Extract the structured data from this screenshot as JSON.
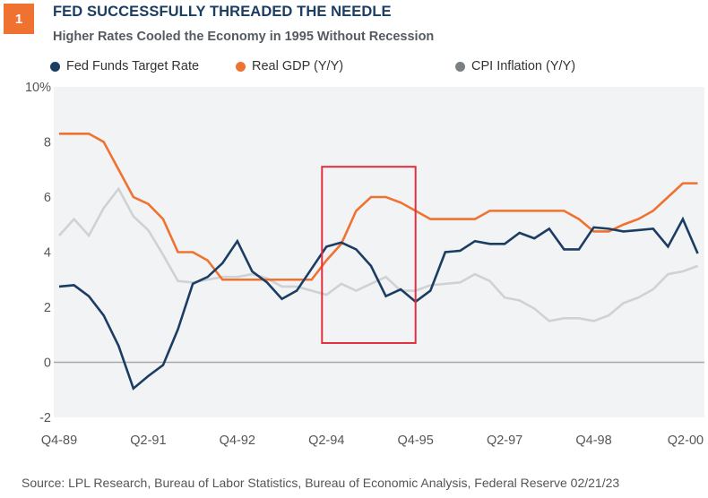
{
  "header": {
    "badge": "1",
    "title": "FED SUCCESSFULLY THREADED THE NEEDLE",
    "subtitle": "Higher Rates Cooled the Economy in 1995 Without Recession"
  },
  "footer": {
    "source": "Source: LPL Research, Bureau of Labor Statistics, Bureau of Economic Analysis, Federal Reserve  02/21/23"
  },
  "colors": {
    "fed": "#1b3d62",
    "gdp": "#f07230",
    "cpi": "#cfd2d4",
    "cpi_legend": "#7a7f84",
    "plot_bg": "#f2f3f5",
    "highlight": "#e03040",
    "zero_line": "#a7a9ab"
  },
  "chart_data": {
    "type": "line",
    "title": "FED SUCCESSFULLY THREADED THE NEEDLE",
    "subtitle": "Higher Rates Cooled the Economy in 1995 Without Recession",
    "xlabel": "",
    "ylabel": "",
    "ylim": [
      -2,
      10
    ],
    "y_ticks": [
      -2,
      0,
      2,
      4,
      6,
      8,
      10
    ],
    "y_tick_labels": [
      "-2",
      "0",
      "2",
      "4",
      "6",
      "8",
      "10%"
    ],
    "x_tick_labels": [
      "Q4-89",
      "Q2-91",
      "Q4-92",
      "Q2-94",
      "Q4-95",
      "Q2-97",
      "Q4-98",
      "Q2-00"
    ],
    "x_tick_index": [
      0,
      6,
      12,
      18,
      24,
      30,
      36,
      42
    ],
    "legend_position": "top",
    "grid": false,
    "highlight_box": {
      "x_start_index": 17.7,
      "x_end_index": 24.0,
      "y_low": 0.7,
      "y_high": 7.1
    },
    "series": [
      {
        "name": "Fed Funds Target Rate",
        "color_key": "fed",
        "values": [
          2.75,
          2.8,
          2.4,
          1.7,
          0.6,
          -0.95,
          -0.5,
          -0.1,
          1.2,
          2.85,
          3.1,
          3.6,
          4.4,
          3.3,
          2.9,
          2.3,
          2.6,
          3.4,
          4.2,
          4.35,
          4.1,
          3.5,
          2.4,
          2.65,
          2.2,
          2.6,
          4.0,
          4.05,
          4.4,
          4.3,
          4.3,
          4.7,
          4.5,
          4.85,
          4.1,
          4.1,
          4.9,
          4.85,
          4.75,
          4.8,
          4.85,
          4.2,
          5.2,
          3.95
        ]
      },
      {
        "name": "Real GDP (Y/Y)",
        "color_key": "gdp",
        "values": [
          8.3,
          8.3,
          8.3,
          8.0,
          7.0,
          6.0,
          5.75,
          5.2,
          4.0,
          4.0,
          3.7,
          3.0,
          3.0,
          3.0,
          3.0,
          3.0,
          3.0,
          3.0,
          3.7,
          4.3,
          5.5,
          6.0,
          6.0,
          5.8,
          5.5,
          5.2,
          5.2,
          5.2,
          5.2,
          5.5,
          5.5,
          5.5,
          5.5,
          5.5,
          5.5,
          5.2,
          4.75,
          4.75,
          5.0,
          5.2,
          5.5,
          6.0,
          6.5,
          6.5
        ]
      },
      {
        "name": "CPI Inflation (Y/Y)",
        "color_key": "cpi",
        "values": [
          4.6,
          5.2,
          4.6,
          5.6,
          6.3,
          5.3,
          4.8,
          3.9,
          2.95,
          2.9,
          3.0,
          3.1,
          3.1,
          3.2,
          3.05,
          2.75,
          2.75,
          2.6,
          2.45,
          2.85,
          2.6,
          2.85,
          3.1,
          2.6,
          2.6,
          2.8,
          2.85,
          2.9,
          3.2,
          2.95,
          2.35,
          2.25,
          1.95,
          1.5,
          1.6,
          1.6,
          1.5,
          1.7,
          2.15,
          2.35,
          2.65,
          3.2,
          3.3,
          3.5
        ]
      }
    ]
  }
}
